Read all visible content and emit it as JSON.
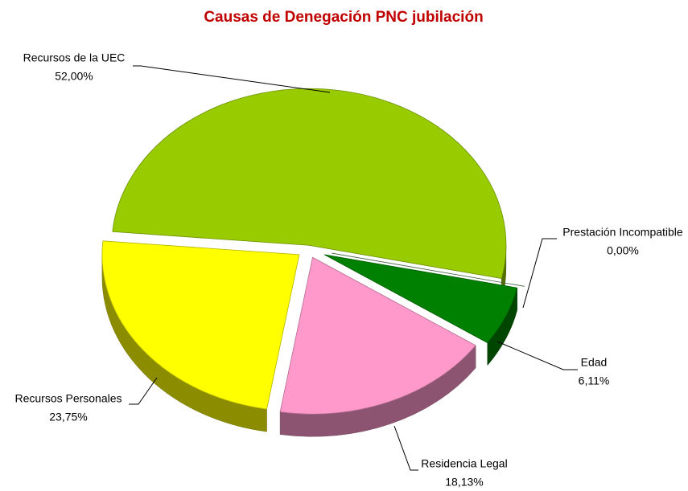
{
  "chart_data": {
    "type": "pie",
    "title": "Causas de Denegación PNC jubilación",
    "categories": [
      "Recursos de la UEC",
      "Prestación Incompatible",
      "Edad",
      "Residencia Legal",
      "Recursos Personales"
    ],
    "values": [
      52.0,
      0.0,
      6.11,
      18.13,
      23.75
    ],
    "value_labels": [
      "52,00%",
      "0,00%",
      "6,11%",
      "18,13%",
      "23,75%"
    ],
    "colors": [
      "#99cc00",
      "#5a8a5a",
      "#008000",
      "#ff99cc",
      "#ffff00"
    ]
  }
}
